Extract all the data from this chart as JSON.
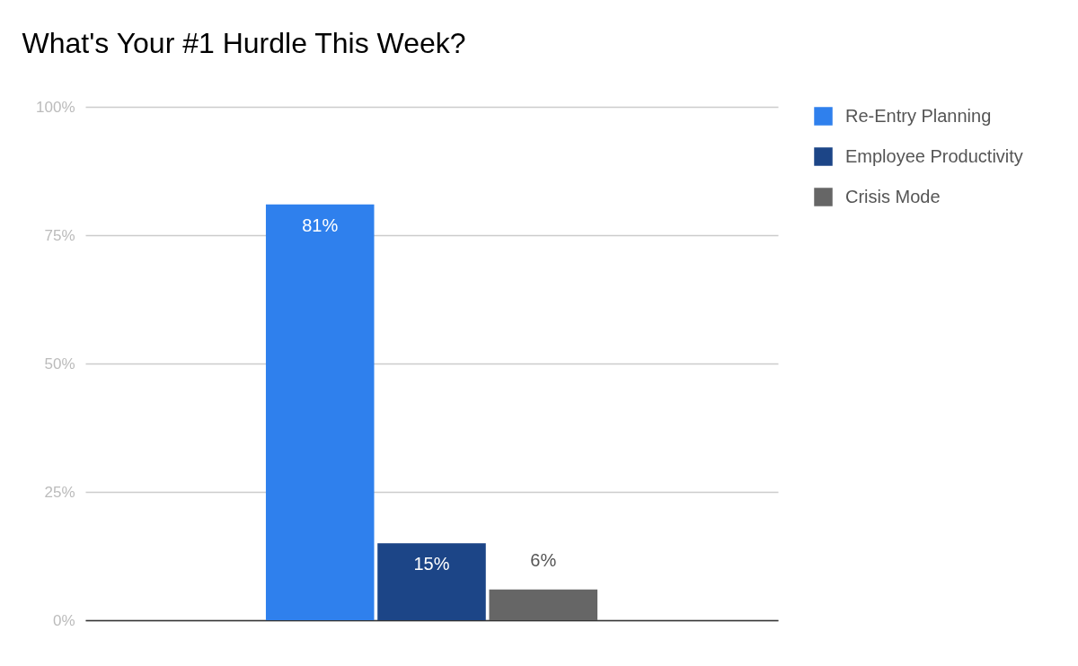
{
  "chart_data": {
    "type": "bar",
    "title": "What's Your #1 Hurdle This Week?",
    "categories": [
      null
    ],
    "series": [
      {
        "name": "Re-Entry Planning",
        "color": "#2f80ed",
        "values": [
          81
        ],
        "value_labels": [
          "81%"
        ]
      },
      {
        "name": "Employee Productivity",
        "color": "#1c4587",
        "values": [
          15
        ],
        "value_labels": [
          "15%"
        ]
      },
      {
        "name": "Crisis Mode",
        "color": "#666666",
        "values": [
          6
        ],
        "value_labels": [
          "6%"
        ]
      }
    ],
    "ylim": [
      0,
      100
    ],
    "yticks": [
      {
        "value": 0,
        "label": "0%"
      },
      {
        "value": 25,
        "label": "25%"
      },
      {
        "value": 50,
        "label": "50%"
      },
      {
        "value": 75,
        "label": "75%"
      },
      {
        "value": 100,
        "label": "100%"
      }
    ],
    "grid": "y",
    "legend": "right"
  }
}
